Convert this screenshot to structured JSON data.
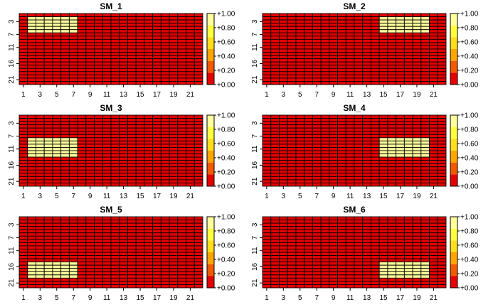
{
  "colors": {
    "palette": [
      "#e60000",
      "#f25a00",
      "#ffa500",
      "#ffde1a",
      "#ffff3f",
      "#ffff9c"
    ],
    "grid_line": "#000000",
    "background": "#ffffff"
  },
  "chart_data": [
    {
      "type": "heatmap",
      "title": "SM_1",
      "rows": 22,
      "cols": 22,
      "x_ticks": [
        1,
        3,
        5,
        7,
        9,
        11,
        13,
        15,
        17,
        19,
        21
      ],
      "y_ticks": [
        3,
        7,
        11,
        16,
        21
      ],
      "background_value": 0,
      "highlight": {
        "value": 1,
        "row_range": [
          2,
          6
        ],
        "col_range": [
          2,
          7
        ]
      },
      "colorbar": {
        "range": [
          0,
          1
        ],
        "tick_labels": [
          "+1.00",
          "+0.80",
          "+0.60",
          "+0.40",
          "+0.20",
          "+0.00"
        ]
      }
    },
    {
      "type": "heatmap",
      "title": "SM_2",
      "rows": 22,
      "cols": 22,
      "x_ticks": [
        1,
        3,
        5,
        7,
        9,
        11,
        13,
        15,
        17,
        19,
        21
      ],
      "y_ticks": [
        3,
        7,
        11,
        16,
        21
      ],
      "background_value": 0,
      "highlight": {
        "value": 1,
        "row_range": [
          2,
          6
        ],
        "col_range": [
          15,
          20
        ]
      },
      "colorbar": {
        "range": [
          0,
          1
        ],
        "tick_labels": [
          "+1.00",
          "+0.80",
          "+0.60",
          "+0.40",
          "+0.20",
          "+0.00"
        ]
      }
    },
    {
      "type": "heatmap",
      "title": "SM_3",
      "rows": 22,
      "cols": 22,
      "x_ticks": [
        1,
        3,
        5,
        7,
        9,
        11,
        13,
        15,
        17,
        19,
        21
      ],
      "y_ticks": [
        3,
        7,
        11,
        16,
        21
      ],
      "background_value": 0,
      "highlight": {
        "value": 1,
        "row_range": [
          8,
          13
        ],
        "col_range": [
          2,
          7
        ]
      },
      "colorbar": {
        "range": [
          0,
          1
        ],
        "tick_labels": [
          "+1.00",
          "+0.80",
          "+0.60",
          "+0.40",
          "+0.20",
          "+0.00"
        ]
      }
    },
    {
      "type": "heatmap",
      "title": "SM_4",
      "rows": 22,
      "cols": 22,
      "x_ticks": [
        1,
        3,
        5,
        7,
        9,
        11,
        13,
        15,
        17,
        19,
        21
      ],
      "y_ticks": [
        3,
        7,
        11,
        16,
        21
      ],
      "background_value": 0,
      "highlight": {
        "value": 1,
        "row_range": [
          8,
          13
        ],
        "col_range": [
          15,
          20
        ]
      },
      "colorbar": {
        "range": [
          0,
          1
        ],
        "tick_labels": [
          "+1.00",
          "+0.80",
          "+0.60",
          "+0.40",
          "+0.20",
          "+0.00"
        ]
      }
    },
    {
      "type": "heatmap",
      "title": "SM_5",
      "rows": 22,
      "cols": 22,
      "x_ticks": [
        1,
        3,
        5,
        7,
        9,
        11,
        13,
        15,
        17,
        19,
        21
      ],
      "y_ticks": [
        3,
        7,
        11,
        16,
        21
      ],
      "background_value": 0,
      "highlight": {
        "value": 1,
        "row_range": [
          15,
          19
        ],
        "col_range": [
          2,
          7
        ]
      },
      "colorbar": {
        "range": [
          0,
          1
        ],
        "tick_labels": [
          "+1.00",
          "+0.80",
          "+0.60",
          "+0.40",
          "+0.20",
          "+0.00"
        ]
      }
    },
    {
      "type": "heatmap",
      "title": "SM_6",
      "rows": 22,
      "cols": 22,
      "x_ticks": [
        1,
        3,
        5,
        7,
        9,
        11,
        13,
        15,
        17,
        19,
        21
      ],
      "y_ticks": [
        3,
        7,
        11,
        16,
        21
      ],
      "background_value": 0,
      "highlight": {
        "value": 1,
        "row_range": [
          15,
          19
        ],
        "col_range": [
          15,
          20
        ]
      },
      "colorbar": {
        "range": [
          0,
          1
        ],
        "tick_labels": [
          "+1.00",
          "+0.80",
          "+0.60",
          "+0.40",
          "+0.20",
          "+0.00"
        ]
      }
    }
  ]
}
